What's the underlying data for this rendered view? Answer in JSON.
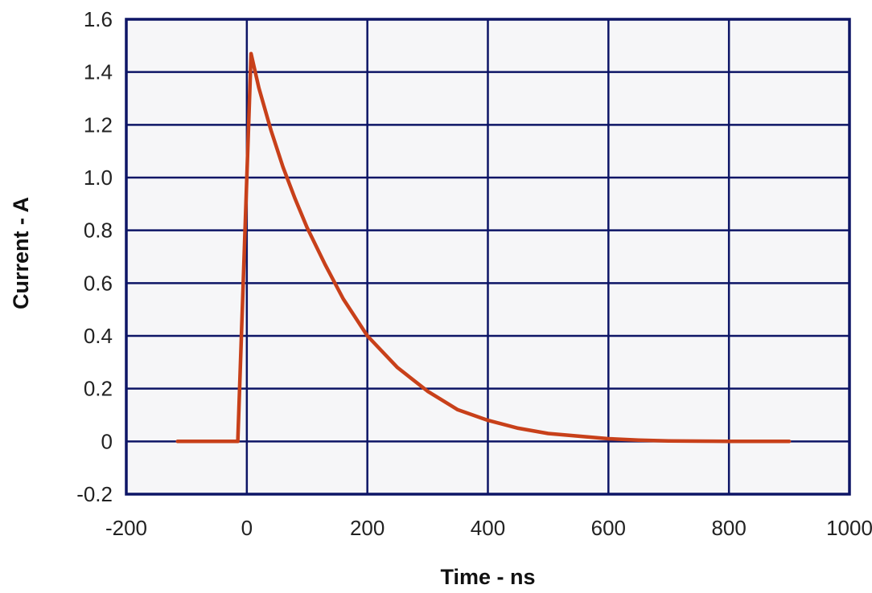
{
  "chart_data": {
    "type": "line",
    "title": "",
    "xlabel": "Time - ns",
    "ylabel": "Current - A",
    "xlim": [
      -200,
      1000
    ],
    "ylim": [
      -0.2,
      1.6
    ],
    "x_ticks": [
      -200,
      0,
      200,
      400,
      600,
      800,
      1000
    ],
    "x_tick_labels": [
      "-200",
      "0",
      "200",
      "400",
      "600",
      "800",
      "1000"
    ],
    "y_ticks": [
      -0.2,
      0,
      0.2,
      0.4,
      0.6,
      0.8,
      1.0,
      1.2,
      1.4,
      1.6
    ],
    "y_tick_labels": [
      "-0.2",
      "0",
      "0.2",
      "0.4",
      "0.6",
      "0.8",
      "1.0",
      "1.2",
      "1.4",
      "1.6"
    ],
    "grid": true,
    "legend": "none",
    "series": [
      {
        "color": "#C8401A",
        "x": [
          -115,
          -15,
          7,
          20,
          40,
          60,
          80,
          100,
          130,
          160,
          200,
          250,
          300,
          350,
          400,
          450,
          500,
          550,
          600,
          650,
          700,
          750,
          800,
          850,
          900
        ],
        "y": [
          0,
          0,
          1.47,
          1.34,
          1.18,
          1.04,
          0.92,
          0.81,
          0.67,
          0.54,
          0.4,
          0.28,
          0.19,
          0.12,
          0.08,
          0.05,
          0.03,
          0.02,
          0.01,
          0.005,
          0.002,
          0.001,
          0.0,
          0.0,
          0.0
        ]
      }
    ],
    "colors": {
      "plot_background": "#F6F6F8",
      "grid": "#0D1566",
      "frame": "#0D1566"
    }
  }
}
